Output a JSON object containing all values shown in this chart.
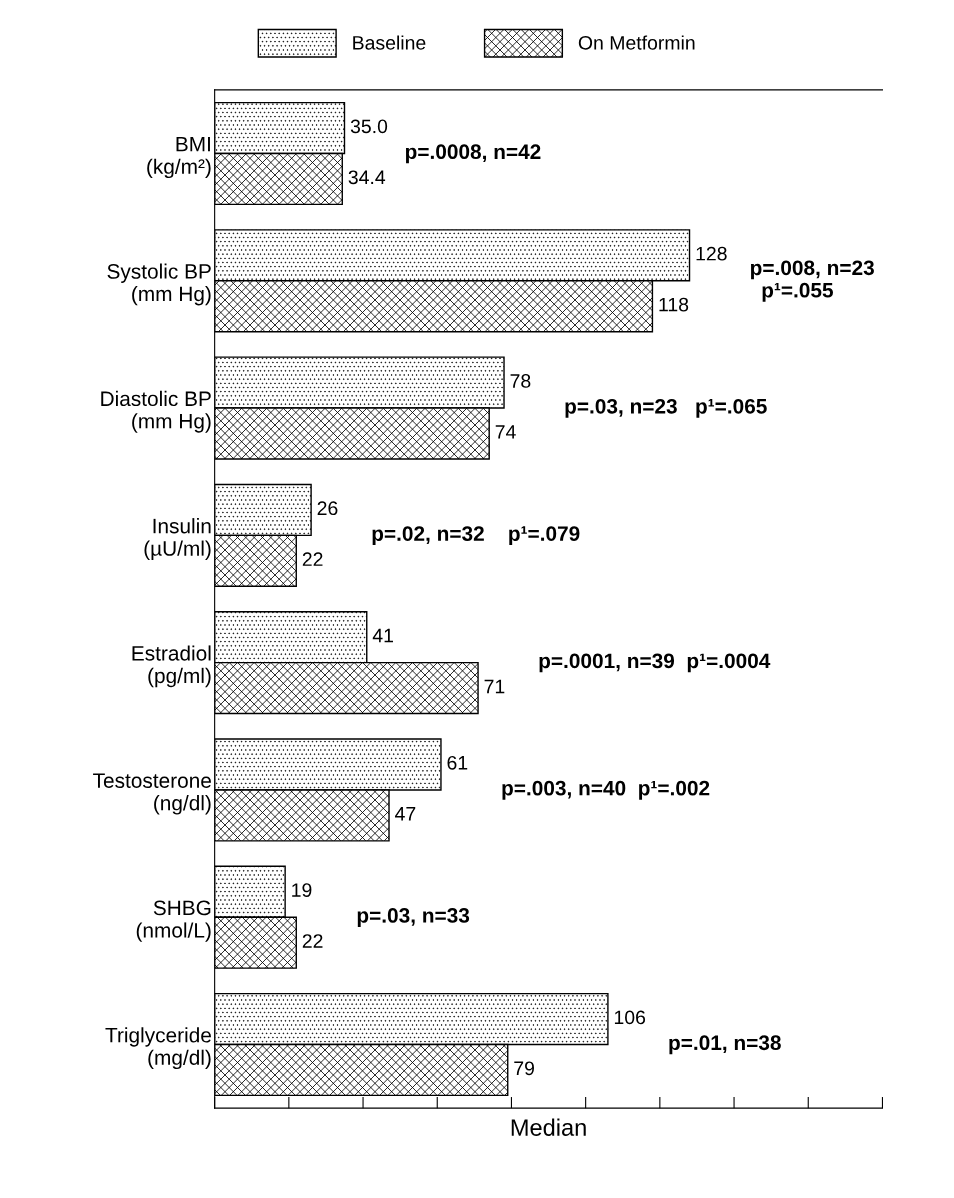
{
  "chart_data": {
    "type": "bar",
    "orientation": "horizontal",
    "xlabel": "Median",
    "categories": [
      "BMI\n(kg/m²)",
      "Systolic BP\n(mm Hg)",
      "Diastolic BP\n(mm Hg)",
      "Insulin\n(µU/ml)",
      "Estradiol\n(pg/ml)",
      "Testosterone\n(ng/dl)",
      "SHBG\n(nmol/L)",
      "Triglyceride\n(mg/dl)"
    ],
    "series": [
      {
        "name": "Baseline",
        "color": "#000000",
        "values": [
          35.0,
          128,
          78,
          26,
          41,
          61,
          19,
          106
        ],
        "value_labels": [
          "35.0",
          "128",
          "78",
          "26",
          "41",
          "61",
          "19",
          "106"
        ]
      },
      {
        "name": "On Metformin",
        "color": "#000000",
        "values": [
          34.4,
          118,
          74,
          22,
          71,
          47,
          22,
          79
        ],
        "value_labels": [
          "34.4",
          "118",
          "74",
          "22",
          "71",
          "47",
          "22",
          "79"
        ]
      }
    ],
    "xlim": [
      0,
      180
    ],
    "xticks": [
      {
        "value": 0,
        "label": null
      },
      {
        "value": 20,
        "label": null
      },
      {
        "value": 40,
        "label": null
      },
      {
        "value": 60,
        "label": null
      },
      {
        "value": 80,
        "label": null
      },
      {
        "value": 100,
        "label": null
      },
      {
        "value": 120,
        "label": null
      },
      {
        "value": 140,
        "label": null
      },
      {
        "value": 160,
        "label": null
      },
      {
        "value": 180,
        "label": null
      }
    ],
    "legend": "top",
    "grid": false,
    "annotations": [
      "p=.0008, n=42",
      "p=.008, n=23\n  p¹=.055",
      "p=.03, n=23   p¹=.065",
      "p=.02, n=32    p¹=.079",
      "p=.0001, n=39  p¹=.0004",
      "p=.003, n=40  p¹=.002",
      "p=.03, n=33",
      "p=.01, n=38"
    ]
  }
}
